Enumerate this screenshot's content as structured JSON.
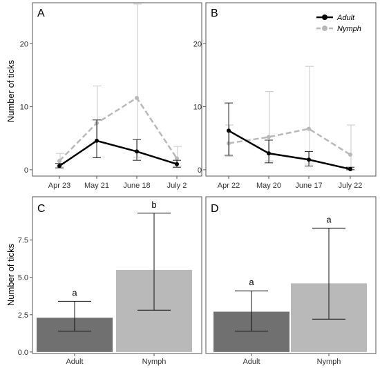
{
  "colors": {
    "adult_line": "#000000",
    "nymph_line": "#b9b9b9",
    "adult_bar": "#707070",
    "nymph_bar": "#b9b9b9",
    "axis": "#555555"
  },
  "legend": {
    "position": "top-right",
    "panel": "B",
    "adult": "Adult",
    "nymph": "Nymph"
  },
  "ylabel": "Number of ticks",
  "chart_data": [
    {
      "type": "line",
      "panel_label": "A",
      "categories": [
        "Apr 23",
        "May 21",
        "June 18",
        "July 2"
      ],
      "ylim": [
        -1,
        26.5
      ],
      "yticks": [
        0,
        10,
        20
      ],
      "series": [
        {
          "name": "Adult",
          "values": [
            0.6,
            4.6,
            2.9,
            0.9
          ],
          "err_low": [
            0.3,
            1.9,
            1.5,
            0.4
          ],
          "err_high": [
            1.0,
            7.9,
            4.8,
            1.5
          ]
        },
        {
          "name": "Nymph",
          "values": [
            1.4,
            7.4,
            11.4,
            1.8
          ],
          "err_low": [
            0.6,
            4.5,
            2.0,
            0.6
          ],
          "err_high": [
            2.6,
            13.3,
            26.3,
            3.7
          ]
        }
      ]
    },
    {
      "type": "line",
      "panel_label": "B",
      "categories": [
        "Apr 22",
        "May 20",
        "June 17",
        "July 22"
      ],
      "ylim": [
        -1,
        26.5
      ],
      "yticks": [
        0,
        10,
        20
      ],
      "series": [
        {
          "name": "Adult",
          "values": [
            6.2,
            2.6,
            1.6,
            0.1
          ],
          "err_low": [
            2.3,
            1.1,
            0.6,
            0.0
          ],
          "err_high": [
            10.6,
            4.7,
            2.9,
            0.4
          ]
        },
        {
          "name": "Nymph",
          "values": [
            4.2,
            5.2,
            6.5,
            2.4
          ],
          "err_low": [
            2.1,
            1.4,
            0.9,
            0.0
          ],
          "err_high": [
            7.1,
            12.4,
            16.4,
            7.1
          ]
        }
      ]
    },
    {
      "type": "bar",
      "panel_label": "C",
      "categories": [
        "Adult",
        "Nymph"
      ],
      "values": [
        2.3,
        5.5
      ],
      "err_low": [
        1.4,
        2.8
      ],
      "err_high": [
        3.4,
        9.3
      ],
      "significance": [
        "a",
        "b"
      ],
      "ylim": [
        -0.1,
        10.4
      ],
      "yticks": [
        "0.0",
        "2.5",
        "5.0",
        "7.5"
      ]
    },
    {
      "type": "bar",
      "panel_label": "D",
      "categories": [
        "Adult",
        "Nymph"
      ],
      "values": [
        2.7,
        4.6
      ],
      "err_low": [
        1.4,
        2.2
      ],
      "err_high": [
        4.1,
        8.3
      ],
      "significance": [
        "a",
        "a"
      ],
      "ylim": [
        -0.1,
        10.4
      ],
      "yticks": []
    }
  ]
}
